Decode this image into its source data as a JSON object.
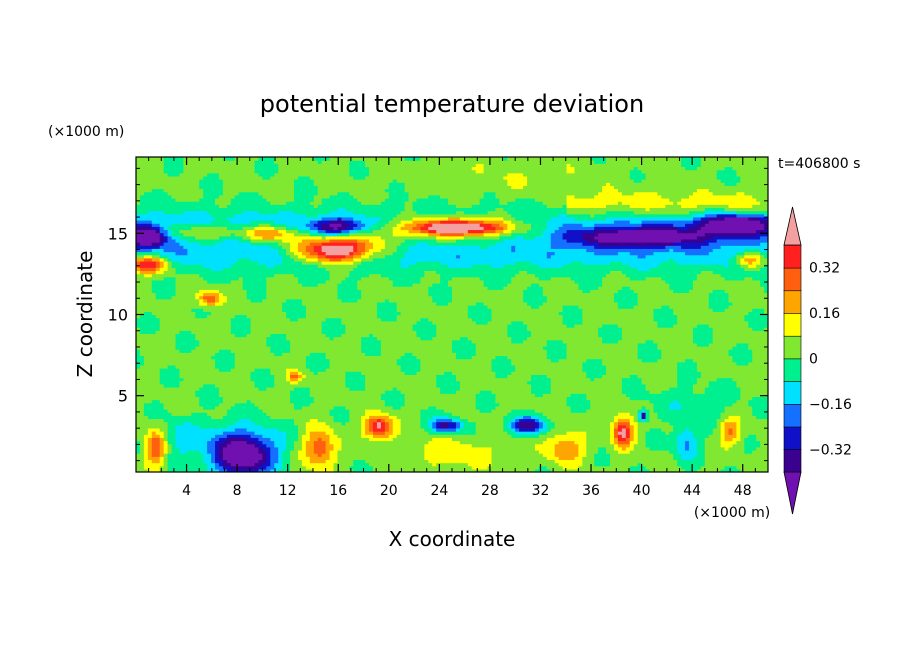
{
  "chart_data": {
    "type": "heatmap",
    "title": "potential temperature deviation",
    "xlabel": "X coordinate",
    "ylabel": "Z coordinate",
    "x_unit_label": "(×1000 m)",
    "y_unit_label": "(×1000 m)",
    "time_label": "t=406800 s",
    "xlim": [
      0,
      50
    ],
    "ylim": [
      0.3,
      19.7
    ],
    "x_ticks": [
      4,
      8,
      12,
      16,
      20,
      24,
      28,
      32,
      36,
      40,
      44,
      48
    ],
    "y_ticks": [
      5,
      10,
      15
    ],
    "colorbar": {
      "levels": [
        -0.4,
        -0.32,
        -0.24,
        -0.16,
        -0.08,
        0,
        0.08,
        0.16,
        0.24,
        0.32,
        0.4
      ],
      "tick_labels": [
        "0.32",
        "0.16",
        "0",
        "−0.16",
        "−0.32"
      ],
      "tick_values": [
        0.32,
        0.16,
        0,
        -0.16,
        -0.32
      ],
      "colors": {
        "under": "#7010b0",
        "bins": [
          "#3a0090",
          "#1010c8",
          "#1470ff",
          "#00e0ff",
          "#00f090",
          "#80e830",
          "#ffff00",
          "#ffa500",
          "#ff6010",
          "#ff2020"
        ],
        "over": "#f4a0a0"
      }
    },
    "features": [
      {
        "type": "band",
        "z": 15.3,
        "height": 1.2,
        "value": -0.18,
        "x_from": 0,
        "x_to": 50
      },
      {
        "type": "band",
        "z": 13.6,
        "height": 1.0,
        "value": -0.12,
        "x_from": 0,
        "x_to": 50
      },
      {
        "type": "band",
        "z": 16.8,
        "height": 0.8,
        "value": 0.12,
        "x_from": 34,
        "x_to": 50
      },
      {
        "type": "blob",
        "x": 0.8,
        "z": 14.8,
        "sx": 1.6,
        "sz": 0.6,
        "value": -0.46
      },
      {
        "type": "blob",
        "x": 0.8,
        "z": 13.1,
        "sx": 1.6,
        "sz": 0.55,
        "value": 0.46
      },
      {
        "type": "blob",
        "x": 5.5,
        "z": 15.1,
        "sx": 3.5,
        "sz": 0.55,
        "value": 0.25
      },
      {
        "type": "blob",
        "x": 10.5,
        "z": 15.0,
        "sx": 2.0,
        "sz": 0.5,
        "value": 0.3
      },
      {
        "type": "blob",
        "x": 16.0,
        "z": 15.4,
        "sx": 2.2,
        "sz": 0.55,
        "value": -0.44
      },
      {
        "type": "blob",
        "x": 15.8,
        "z": 13.9,
        "sx": 2.8,
        "sz": 0.7,
        "value": 0.46
      },
      {
        "type": "blob",
        "x": 16.0,
        "z": 14.6,
        "sx": 4.5,
        "sz": 1.0,
        "value": 0.28
      },
      {
        "type": "blob",
        "x": 25.5,
        "z": 15.3,
        "sx": 6.5,
        "sz": 0.8,
        "value": 0.3
      },
      {
        "type": "blob",
        "x": 25.5,
        "z": 15.4,
        "sx": 3.5,
        "sz": 0.45,
        "value": 0.46
      },
      {
        "type": "blob",
        "x": 40.0,
        "z": 14.8,
        "sx": 5.5,
        "sz": 0.6,
        "value": -0.38
      },
      {
        "type": "blob",
        "x": 47.5,
        "z": 15.6,
        "sx": 3.0,
        "sz": 0.6,
        "value": -0.44
      },
      {
        "type": "blob",
        "x": 48.5,
        "z": 13.4,
        "sx": 1.2,
        "sz": 0.5,
        "value": 0.3
      },
      {
        "type": "blob",
        "x": 5.8,
        "z": 11.0,
        "sx": 0.9,
        "sz": 0.45,
        "value": 0.3
      },
      {
        "type": "blob",
        "x": 12.6,
        "z": 6.2,
        "sx": 0.6,
        "sz": 0.35,
        "value": 0.25
      },
      {
        "type": "blob",
        "x": 1.5,
        "z": 1.8,
        "sx": 0.8,
        "sz": 1.1,
        "value": 0.3
      },
      {
        "type": "blob",
        "x": 3.5,
        "z": 2.5,
        "sx": 1.2,
        "sz": 1.0,
        "value": -0.12
      },
      {
        "type": "blob",
        "x": 8.5,
        "z": 1.2,
        "sx": 2.2,
        "sz": 1.2,
        "value": -0.44
      },
      {
        "type": "blob",
        "x": 8.0,
        "z": 2.0,
        "sx": 3.5,
        "sz": 1.4,
        "value": -0.2
      },
      {
        "type": "blob",
        "x": 14.5,
        "z": 1.8,
        "sx": 1.3,
        "sz": 1.2,
        "value": 0.3
      },
      {
        "type": "blob",
        "x": 19.2,
        "z": 3.1,
        "sx": 1.1,
        "sz": 0.7,
        "value": 0.44
      },
      {
        "type": "blob",
        "x": 24.5,
        "z": 3.2,
        "sx": 1.2,
        "sz": 0.45,
        "value": -0.38
      },
      {
        "type": "blob",
        "x": 31.0,
        "z": 3.2,
        "sx": 1.4,
        "sz": 0.5,
        "value": -0.4
      },
      {
        "type": "blob",
        "x": 34.0,
        "z": 1.8,
        "sx": 1.5,
        "sz": 1.0,
        "value": 0.22
      },
      {
        "type": "blob",
        "x": 38.5,
        "z": 2.8,
        "sx": 0.8,
        "sz": 0.9,
        "value": 0.44
      },
      {
        "type": "blob",
        "x": 40.1,
        "z": 3.8,
        "sx": 0.3,
        "sz": 0.3,
        "value": -0.44
      },
      {
        "type": "blob",
        "x": 43.5,
        "z": 2.2,
        "sx": 0.9,
        "sz": 1.1,
        "value": -0.2
      },
      {
        "type": "blob",
        "x": 47.0,
        "z": 2.8,
        "sx": 0.8,
        "sz": 0.8,
        "value": 0.25
      },
      {
        "type": "blob",
        "x": 25.0,
        "z": 1.5,
        "sx": 4.0,
        "sz": 1.0,
        "value": 0.12
      },
      {
        "type": "blob",
        "x": 44.0,
        "z": 4.5,
        "sx": 3.0,
        "sz": 1.0,
        "value": -0.08
      },
      {
        "type": "blob",
        "x": 30.0,
        "z": 18.5,
        "sx": 8.0,
        "sz": 1.2,
        "value": 0.05
      }
    ]
  }
}
